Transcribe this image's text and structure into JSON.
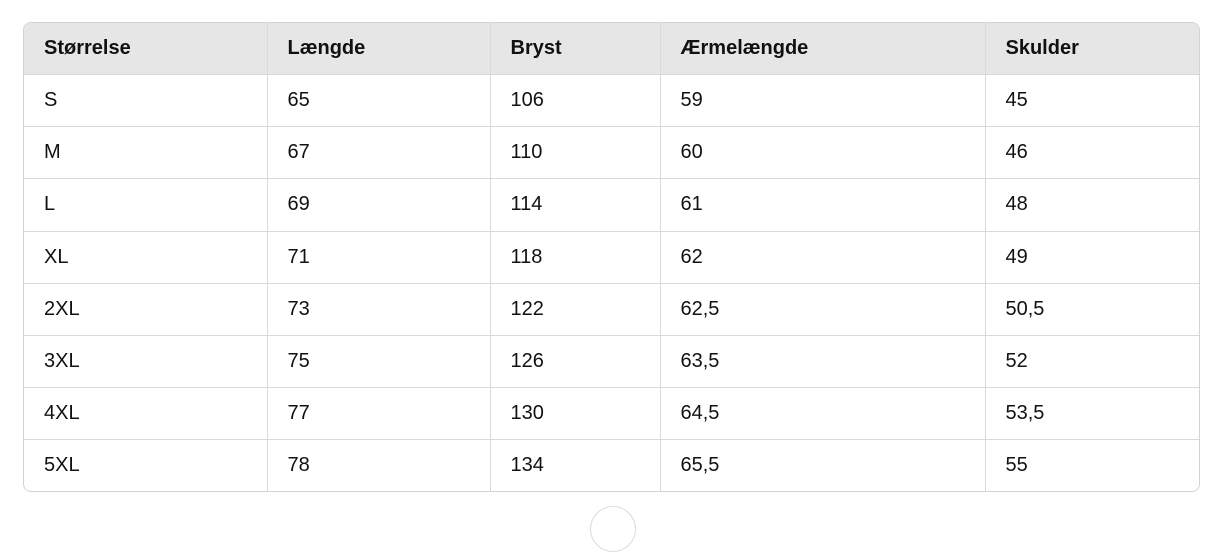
{
  "table": {
    "headers": [
      "Størrelse",
      "Længde",
      "Bryst",
      "Ærmelængde",
      "Skulder"
    ],
    "rows": [
      [
        "S",
        "65",
        "106",
        "59",
        "45"
      ],
      [
        "M",
        "67",
        "110",
        "60",
        "46"
      ],
      [
        "L",
        "69",
        "114",
        "61",
        "48"
      ],
      [
        "XL",
        "71",
        "118",
        "62",
        "49"
      ],
      [
        "2XL",
        "73",
        "122",
        "62,5",
        "50,5"
      ],
      [
        "3XL",
        "75",
        "126",
        "63,5",
        "52"
      ],
      [
        "4XL",
        "77",
        "130",
        "64,5",
        "53,5"
      ],
      [
        "5XL",
        "78",
        "134",
        "65,5",
        "55"
      ]
    ]
  }
}
